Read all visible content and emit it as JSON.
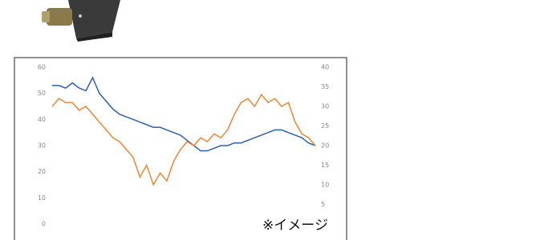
{
  "chart_data": {
    "type": "line",
    "annotation": "※イメージ",
    "ylim": [
      0,
      60
    ],
    "yticks": [
      0,
      10,
      20,
      30,
      40,
      50,
      60
    ],
    "y2lim": [
      0,
      40
    ],
    "y2ticks": [
      5,
      10,
      15,
      20,
      25,
      30,
      35,
      40
    ],
    "series": [
      {
        "color": "#2f5fad",
        "values": [
          53,
          53,
          52,
          54,
          52,
          51,
          56,
          50,
          47,
          44,
          42,
          41,
          40,
          39,
          38,
          37,
          37,
          36,
          35,
          34,
          32,
          30,
          28,
          28,
          29,
          30,
          30,
          31,
          31,
          32,
          33,
          34,
          35,
          36,
          36,
          35,
          34,
          33,
          31,
          30
        ]
      },
      {
        "color": "#e8873a",
        "axis": "y2",
        "values": [
          30,
          32,
          31,
          31,
          29,
          30,
          28,
          26,
          24,
          22,
          21,
          19,
          17,
          12,
          15,
          10,
          13,
          11,
          16,
          19,
          21,
          20,
          22,
          21,
          23,
          22,
          24,
          28,
          31,
          32,
          30,
          33,
          31,
          32,
          30,
          31,
          26,
          23,
          22,
          20
        ]
      }
    ]
  }
}
